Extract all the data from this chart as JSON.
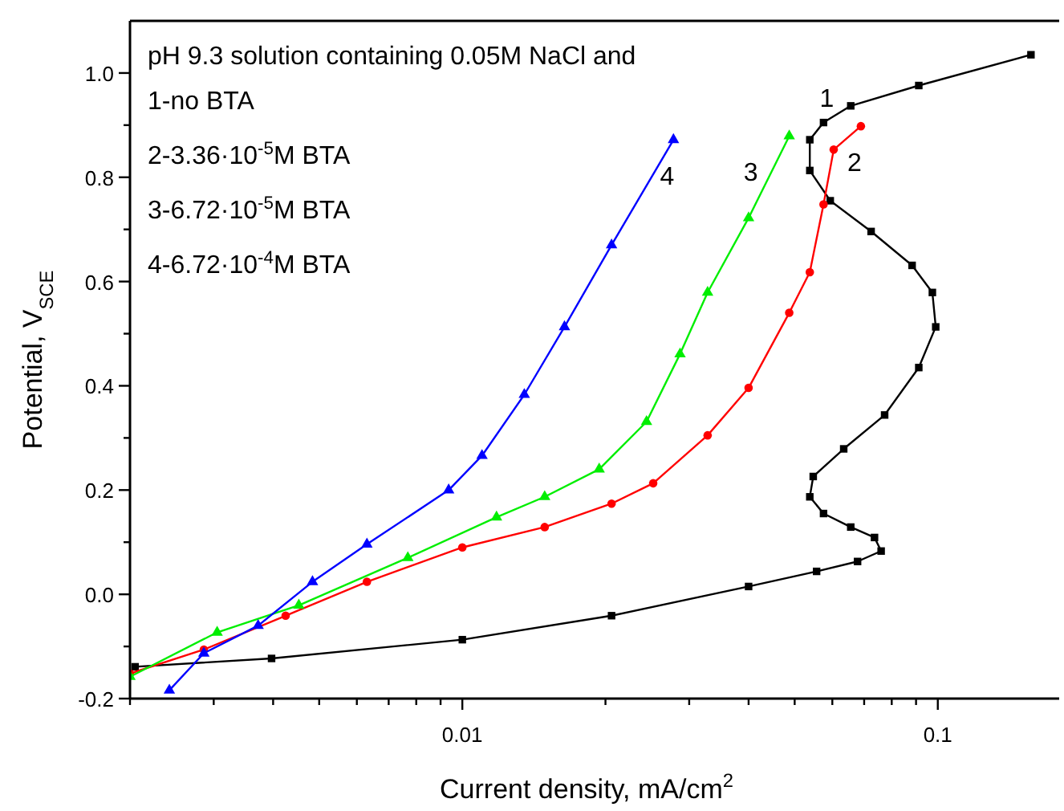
{
  "chart_data": {
    "type": "line",
    "xlabel": "Current density, mA/cm$^{2}$",
    "ylabel": "Potential, V$_{SCE}$",
    "log": "x",
    "xlim": [
      0.002,
      0.18
    ],
    "ylim": [
      -0.2,
      1.1
    ],
    "xticks": [
      {
        "value": 0.002,
        "label": null
      },
      {
        "value": 0.003,
        "label": null
      },
      {
        "value": 0.004,
        "label": null
      },
      {
        "value": 0.005,
        "label": null
      },
      {
        "value": 0.006,
        "label": null
      },
      {
        "value": 0.007,
        "label": null
      },
      {
        "value": 0.008,
        "label": null
      },
      {
        "value": 0.009,
        "label": null
      },
      0.01,
      {
        "value": 0.02,
        "label": null
      },
      {
        "value": 0.03,
        "label": null
      },
      {
        "value": 0.04,
        "label": null
      },
      {
        "value": 0.05,
        "label": null
      },
      {
        "value": 0.06,
        "label": null
      },
      {
        "value": 0.07,
        "label": null
      },
      {
        "value": 0.08,
        "label": null
      },
      {
        "value": 0.09,
        "label": null
      },
      0.1
    ],
    "yticks": [
      {
        "value": -0.2,
        "label": "-0.2"
      },
      {
        "value": -0.1,
        "label": null
      },
      {
        "value": 0,
        "label": "0.0"
      },
      {
        "value": 0.1,
        "label": null
      },
      {
        "value": 0.2,
        "label": "0.2"
      },
      {
        "value": 0.3,
        "label": null
      },
      {
        "value": 0.4,
        "label": "0.4"
      },
      {
        "value": 0.5,
        "label": null
      },
      {
        "value": 0.6,
        "label": "0.6"
      },
      {
        "value": 0.7,
        "label": null
      },
      {
        "value": 0.8,
        "label": "0.8"
      },
      {
        "value": 0.9,
        "label": null
      },
      {
        "value": 1.0,
        "label": "1.0"
      }
    ],
    "annotations": [
      "pH 9.3 solution containing 0.05M NaCl and",
      "1-no BTA",
      "2-3.36·10$^{-5}$M BTA",
      "3-6.72·10$^{-5}$M BTA",
      "4-6.72·10$^{-4}$M BTA"
    ],
    "series": [
      {
        "name": "1",
        "color": "#000000",
        "marker": "square",
        "x": [
          0.00205,
          0.00397,
          0.01,
          0.0206,
          0.04,
          0.0556,
          0.0678,
          0.076,
          0.0736,
          0.0656,
          0.0575,
          0.0538,
          0.0547,
          0.0634,
          0.0773,
          0.0912,
          0.099,
          0.0974,
          0.0883,
          0.0724,
          0.0594,
          0.0538,
          0.0538,
          0.0575,
          0.0656,
          0.0912,
          0.157
        ],
        "values": [
          -0.139,
          -0.123,
          -0.087,
          -0.041,
          0.015,
          0.044,
          0.063,
          0.083,
          0.109,
          0.129,
          0.155,
          0.187,
          0.226,
          0.279,
          0.344,
          0.435,
          0.513,
          0.579,
          0.631,
          0.696,
          0.755,
          0.813,
          0.872,
          0.905,
          0.937,
          0.976,
          1.035
        ]
      },
      {
        "name": "2",
        "color": "#ff0000",
        "marker": "circle",
        "x": [
          0.002,
          0.00286,
          0.00425,
          0.0063,
          0.01,
          0.0149,
          0.0206,
          0.0252,
          0.0328,
          0.04,
          0.0487,
          0.0538,
          0.0575,
          0.0604,
          0.0689
        ],
        "values": [
          -0.152,
          -0.106,
          -0.041,
          0.024,
          0.09,
          0.129,
          0.174,
          0.213,
          0.305,
          0.396,
          0.54,
          0.618,
          0.748,
          0.853,
          0.898
        ]
      },
      {
        "name": "3",
        "color": "#00ee00",
        "marker": "triangle",
        "x": [
          0.002,
          0.00305,
          0.00453,
          0.00768,
          0.0118,
          0.0149,
          0.0194,
          0.0244,
          0.0287,
          0.0328,
          0.04,
          0.0487
        ],
        "values": [
          -0.158,
          -0.073,
          -0.021,
          0.07,
          0.148,
          0.187,
          0.24,
          0.331,
          0.461,
          0.579,
          0.722,
          0.879
        ]
      },
      {
        "name": "4",
        "color": "#0000ff",
        "marker": "triangle",
        "x": [
          0.00242,
          0.00286,
          0.00372,
          0.00484,
          0.0063,
          0.00936,
          0.011,
          0.0135,
          0.0164,
          0.0206,
          0.0278
        ],
        "values": [
          -0.184,
          -0.113,
          -0.06,
          0.024,
          0.096,
          0.2,
          0.266,
          0.383,
          0.513,
          0.67,
          0.872
        ]
      }
    ]
  }
}
